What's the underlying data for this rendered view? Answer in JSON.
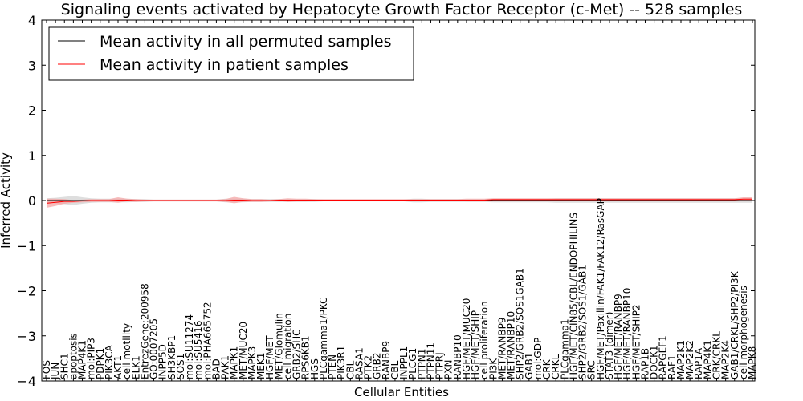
{
  "chart_data": {
    "type": "line",
    "title": "Signaling events activated by Hepatocyte Growth Factor Receptor (c-Met) -- 528 samples",
    "xlabel": "Cellular Entities",
    "ylabel": "Inferred Activity",
    "ylim": [
      -4,
      4
    ],
    "yticks": [
      -4,
      -3,
      -2,
      -1,
      0,
      1,
      2,
      3,
      4
    ],
    "ytick_labels": [
      "−4",
      "−3",
      "−2",
      "−1",
      "0",
      "1",
      "2",
      "3",
      "4"
    ],
    "legend_position": "top-left",
    "categories": [
      "FOS",
      "JUN",
      "SHC1",
      "apoptosis",
      "MAP4K1",
      "mol:PIP3",
      "PDPK1",
      "PIK3CA",
      "AKT1",
      "cell motility",
      "ELK1",
      "EntrezGene:200958",
      "GO:0007205",
      "INPP5D",
      "SH3KBP1",
      "SOS1",
      "mol:SU11274",
      "mol:SU5416",
      "mol:PHA665752",
      "BAD",
      "PAK1",
      "MAPK1",
      "MET/MUC20",
      "MAPK3",
      "MEK1",
      "HGF/MET",
      "MET/Glomulin",
      "cell migration",
      "GRB2/SHC",
      "RPS6KB1",
      "HGS",
      "PLCgamma1/PKC",
      "PTEN",
      "PIK3R1",
      "CBL",
      "RASA1",
      "PTK2",
      "GRB2",
      "RANBP9",
      "CBL",
      "INPPL1",
      "PLCG1",
      "PTPN1",
      "PTPN11",
      "PTPRJ",
      "PXN",
      "RANBP10",
      "HGF/MET/MUC20",
      "HGF/MET/SHIP",
      "cell proliferation",
      "PI3K",
      "MET/RANBP9",
      "MET/RANBP10",
      "SHP2/GRB2/SOS1GAB1",
      "GAB1",
      "mol:GDP",
      "CRK",
      "CRKL",
      "PLCgamma1",
      "HGF/MET/CIN85/CBL/ENDOPHILINS",
      "SHP2/GRB2/SOS1/GAB1",
      "SRC",
      "HGF/MET/Paxillin/FAK1/FAK12/RasGAP",
      "STAT3 (dimer)",
      "HGF/MET/RANBP9",
      "HGF/MET/RANBP10",
      "HGF/MET/SHIP2",
      "RAP1B",
      "DOCK1",
      "RAPGEF1",
      "RAF1",
      "MAP2K1",
      "MAP2K2",
      "RAP1A",
      "MAP4K1",
      "CRK/CRKL",
      "MAP2K4",
      "GAB1/CRKL/SHP2/PI3K",
      "cell morphogenesis",
      "MAPK8"
    ],
    "series": [
      {
        "name": "Mean activity in all permuted samples",
        "color": "#000000",
        "values": [
          0,
          0,
          0,
          0,
          0,
          0,
          0,
          0,
          0,
          0,
          0,
          0,
          0,
          0,
          0,
          0,
          0,
          0,
          0,
          0,
          0,
          0,
          0,
          0,
          0,
          0,
          0,
          0,
          0,
          0,
          0,
          0,
          0,
          0,
          0,
          0,
          0,
          0,
          0,
          0,
          0,
          0,
          0,
          0,
          0,
          0,
          0,
          0,
          0,
          0,
          0,
          0,
          0,
          0,
          0,
          0,
          0,
          0,
          0,
          0,
          0,
          0,
          0,
          0,
          0,
          0,
          0,
          0,
          0,
          0,
          0,
          0,
          0,
          0,
          0,
          0,
          0,
          0,
          0,
          0
        ],
        "band_color": "#c8c8c8",
        "band": [
          0.05,
          0.06,
          0.08,
          0.1,
          0.07,
          0.05,
          0.04,
          0.04,
          0.04,
          0.04,
          0.03,
          0.03,
          0.02,
          0.02,
          0.02,
          0.02,
          0.02,
          0.02,
          0.02,
          0.02,
          0.04,
          0.04,
          0.04,
          0.03,
          0.03,
          0.03,
          0.03,
          0.03,
          0.03,
          0.03,
          0.03,
          0.02,
          0.02,
          0.02,
          0.02,
          0.02,
          0.02,
          0.02,
          0.02,
          0.02,
          0.02,
          0.04,
          0.04,
          0.03,
          0.03,
          0.03,
          0.03,
          0.03,
          0.03,
          0.03,
          0.04,
          0.04,
          0.04,
          0.04,
          0.04,
          0.04,
          0.04,
          0.05,
          0.05,
          0.05,
          0.05,
          0.05,
          0.05,
          0.05,
          0.05,
          0.05,
          0.05,
          0.05,
          0.05,
          0.05,
          0.05,
          0.05,
          0.05,
          0.05,
          0.05,
          0.05,
          0.05,
          0.05,
          0.05,
          0.05
        ]
      },
      {
        "name": "Mean activity in patient samples",
        "color": "#ff0000",
        "values": [
          -0.06,
          -0.04,
          -0.02,
          -0.02,
          -0.01,
          0,
          0,
          0,
          0.01,
          0.01,
          0,
          0,
          0,
          0,
          0,
          0,
          0,
          0,
          0,
          0,
          0,
          0.01,
          0.01,
          0,
          0,
          0,
          0.01,
          0.01,
          0.01,
          0.01,
          0.01,
          0.01,
          0.01,
          0.01,
          0.01,
          0.01,
          0.01,
          0.01,
          0.01,
          0.01,
          0.01,
          0.01,
          0.01,
          0.01,
          0.01,
          0.01,
          0.01,
          0.01,
          0.01,
          0.01,
          0.02,
          0.02,
          0.02,
          0.02,
          0.02,
          0.02,
          0.02,
          0.02,
          0.02,
          0.02,
          0.02,
          0.02,
          0.02,
          0.02,
          0.02,
          0.02,
          0.02,
          0.02,
          0.02,
          0.02,
          0.02,
          0.02,
          0.02,
          0.02,
          0.02,
          0.02,
          0.02,
          0.02,
          0.03,
          0.03
        ],
        "band_color": "#f4a0a0",
        "band": [
          0.1,
          0.08,
          0.05,
          0.03,
          0.03,
          0.03,
          0.03,
          0.03,
          0.06,
          0.03,
          0.03,
          0.02,
          0.02,
          0.02,
          0.02,
          0.02,
          0.02,
          0.02,
          0.02,
          0.02,
          0.03,
          0.07,
          0.04,
          0.03,
          0.03,
          0.02,
          0.02,
          0.04,
          0.03,
          0.03,
          0.02,
          0.02,
          0.02,
          0.02,
          0.02,
          0.02,
          0.02,
          0.02,
          0.02,
          0.02,
          0.02,
          0.02,
          0.02,
          0.02,
          0.02,
          0.02,
          0.02,
          0.03,
          0.03,
          0.03,
          0.03,
          0.03,
          0.03,
          0.03,
          0.03,
          0.03,
          0.03,
          0.03,
          0.03,
          0.03,
          0.03,
          0.03,
          0.03,
          0.03,
          0.03,
          0.03,
          0.03,
          0.03,
          0.03,
          0.03,
          0.03,
          0.03,
          0.03,
          0.03,
          0.03,
          0.03,
          0.03,
          0.03,
          0.04,
          0.04
        ]
      }
    ]
  }
}
